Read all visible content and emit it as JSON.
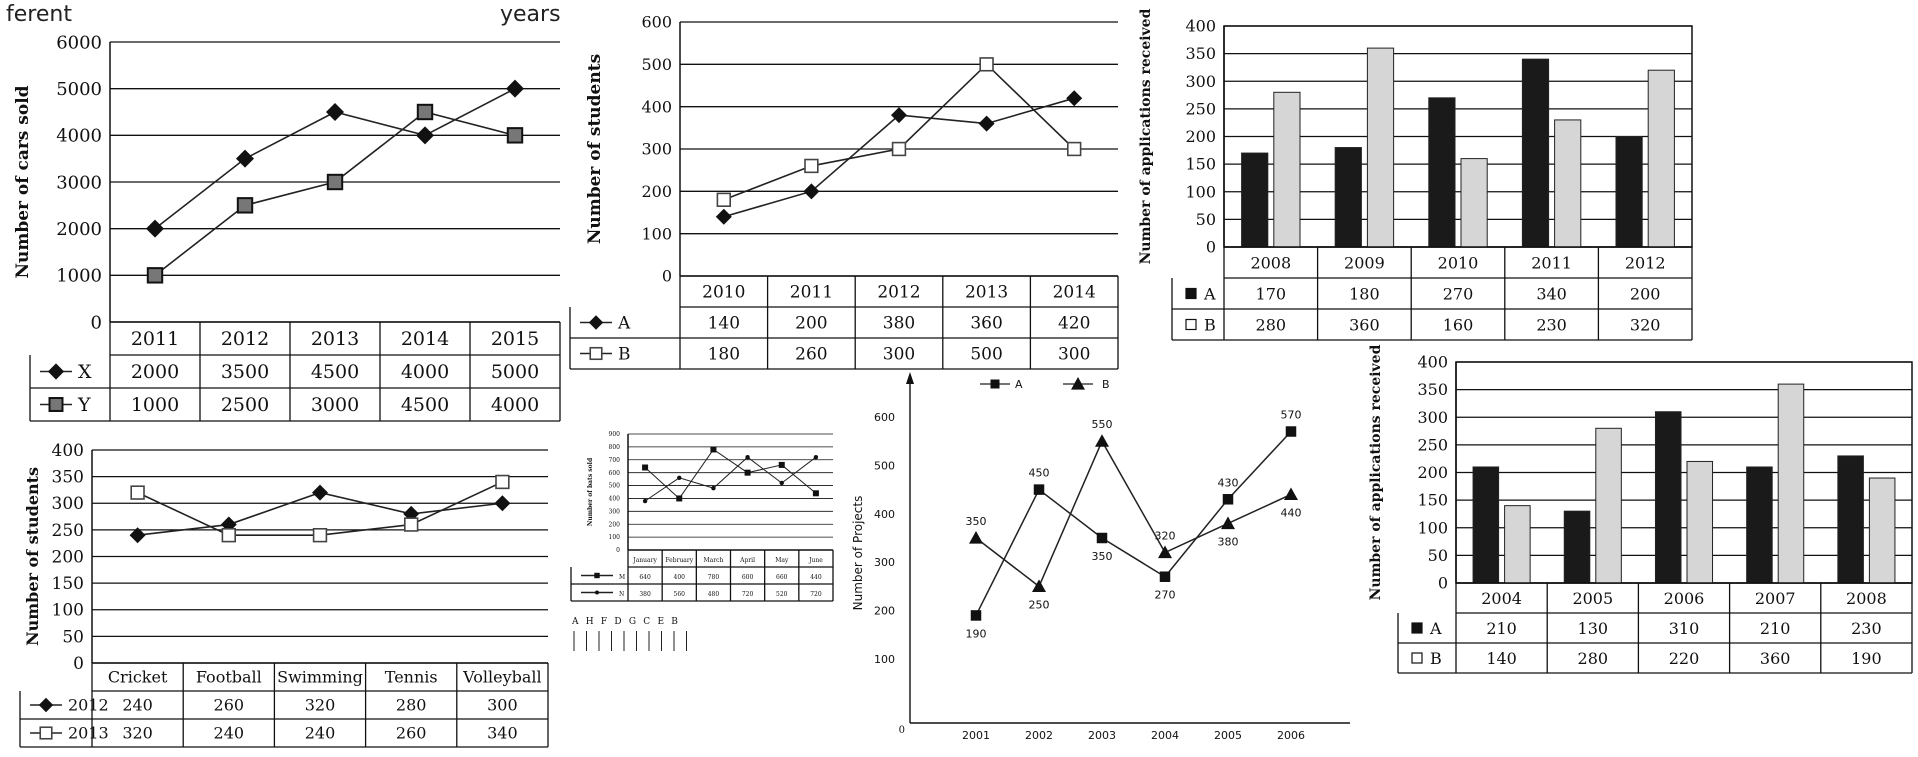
{
  "fragments": {
    "left": "ferent",
    "right": "years"
  },
  "chart_data": [
    {
      "type": "line",
      "ylabel": "Number of cars sold",
      "ylim": [
        0,
        6000
      ],
      "yticks": [
        0,
        1000,
        2000,
        3000,
        4000,
        5000,
        6000
      ],
      "categories": [
        "2011",
        "2012",
        "2013",
        "2014",
        "2015"
      ],
      "series": [
        {
          "name": "X",
          "marker": "diamond",
          "values": [
            2000,
            3500,
            4500,
            4000,
            5000
          ]
        },
        {
          "name": "Y",
          "marker": "gray-square",
          "values": [
            1000,
            2500,
            3000,
            4500,
            4000
          ]
        }
      ]
    },
    {
      "type": "line",
      "ylabel": "Number of students",
      "ylim": [
        0,
        600
      ],
      "yticks": [
        0,
        100,
        200,
        300,
        400,
        500,
        600
      ],
      "categories": [
        "2010",
        "2011",
        "2012",
        "2013",
        "2014"
      ],
      "series": [
        {
          "name": "A",
          "marker": "diamond",
          "values": [
            140,
            200,
            380,
            360,
            420
          ]
        },
        {
          "name": "B",
          "marker": "open-square",
          "values": [
            180,
            260,
            300,
            500,
            300
          ]
        }
      ]
    },
    {
      "type": "bar",
      "ylabel": "Number of applications received",
      "ylim": [
        0,
        400
      ],
      "yticks": [
        0,
        50,
        100,
        150,
        200,
        250,
        300,
        350,
        400
      ],
      "categories": [
        "2008",
        "2009",
        "2010",
        "2011",
        "2012"
      ],
      "series": [
        {
          "name": "A",
          "values": [
            170,
            180,
            270,
            340,
            200
          ]
        },
        {
          "name": "B",
          "values": [
            280,
            360,
            160,
            230,
            320
          ]
        }
      ]
    },
    {
      "type": "line",
      "ylabel": "Number of students",
      "ylim": [
        0,
        400
      ],
      "yticks": [
        0,
        50,
        100,
        150,
        200,
        250,
        300,
        350,
        400
      ],
      "categories": [
        "Cricket",
        "Football",
        "Swimming",
        "Tennis",
        "Volleyball"
      ],
      "series": [
        {
          "name": "2012",
          "marker": "diamond",
          "values": [
            240,
            260,
            320,
            280,
            300
          ]
        },
        {
          "name": "2013",
          "marker": "open-square",
          "values": [
            320,
            240,
            240,
            260,
            340
          ]
        }
      ]
    },
    {
      "type": "line",
      "ylabel": "Number of bats sold",
      "ylim": [
        0,
        900
      ],
      "yticks": [
        0,
        100,
        200,
        300,
        400,
        500,
        600,
        700,
        800,
        900
      ],
      "categories": [
        "January",
        "February",
        "March",
        "April",
        "May",
        "June"
      ],
      "series": [
        {
          "name": "M",
          "marker": "square",
          "values": [
            640,
            400,
            780,
            600,
            660,
            440
          ]
        },
        {
          "name": "N",
          "marker": "dot",
          "values": [
            380,
            560,
            480,
            720,
            520,
            720
          ]
        }
      ],
      "annotation": "A H F D G C E B"
    },
    {
      "type": "line",
      "ylabel": "Number of Projects",
      "yticks": [
        100,
        200,
        300,
        400,
        500,
        600
      ],
      "categories": [
        "2001",
        "2002",
        "2003",
        "2004",
        "2005",
        "2006"
      ],
      "legend_position": "top",
      "series": [
        {
          "name": "A",
          "marker": "square",
          "values": [
            190,
            450,
            350,
            270,
            430,
            570
          ]
        },
        {
          "name": "B",
          "marker": "triangle",
          "values": [
            350,
            250,
            550,
            320,
            380,
            440
          ]
        }
      ]
    },
    {
      "type": "bar",
      "ylabel": "Number of applications received",
      "ylim": [
        0,
        400
      ],
      "yticks": [
        0,
        50,
        100,
        150,
        200,
        250,
        300,
        350,
        400
      ],
      "categories": [
        "2004",
        "2005",
        "2006",
        "2007",
        "2008"
      ],
      "series": [
        {
          "name": "A",
          "values": [
            210,
            130,
            310,
            210,
            230
          ]
        },
        {
          "name": "B",
          "values": [
            140,
            280,
            220,
            360,
            190
          ]
        }
      ]
    }
  ]
}
